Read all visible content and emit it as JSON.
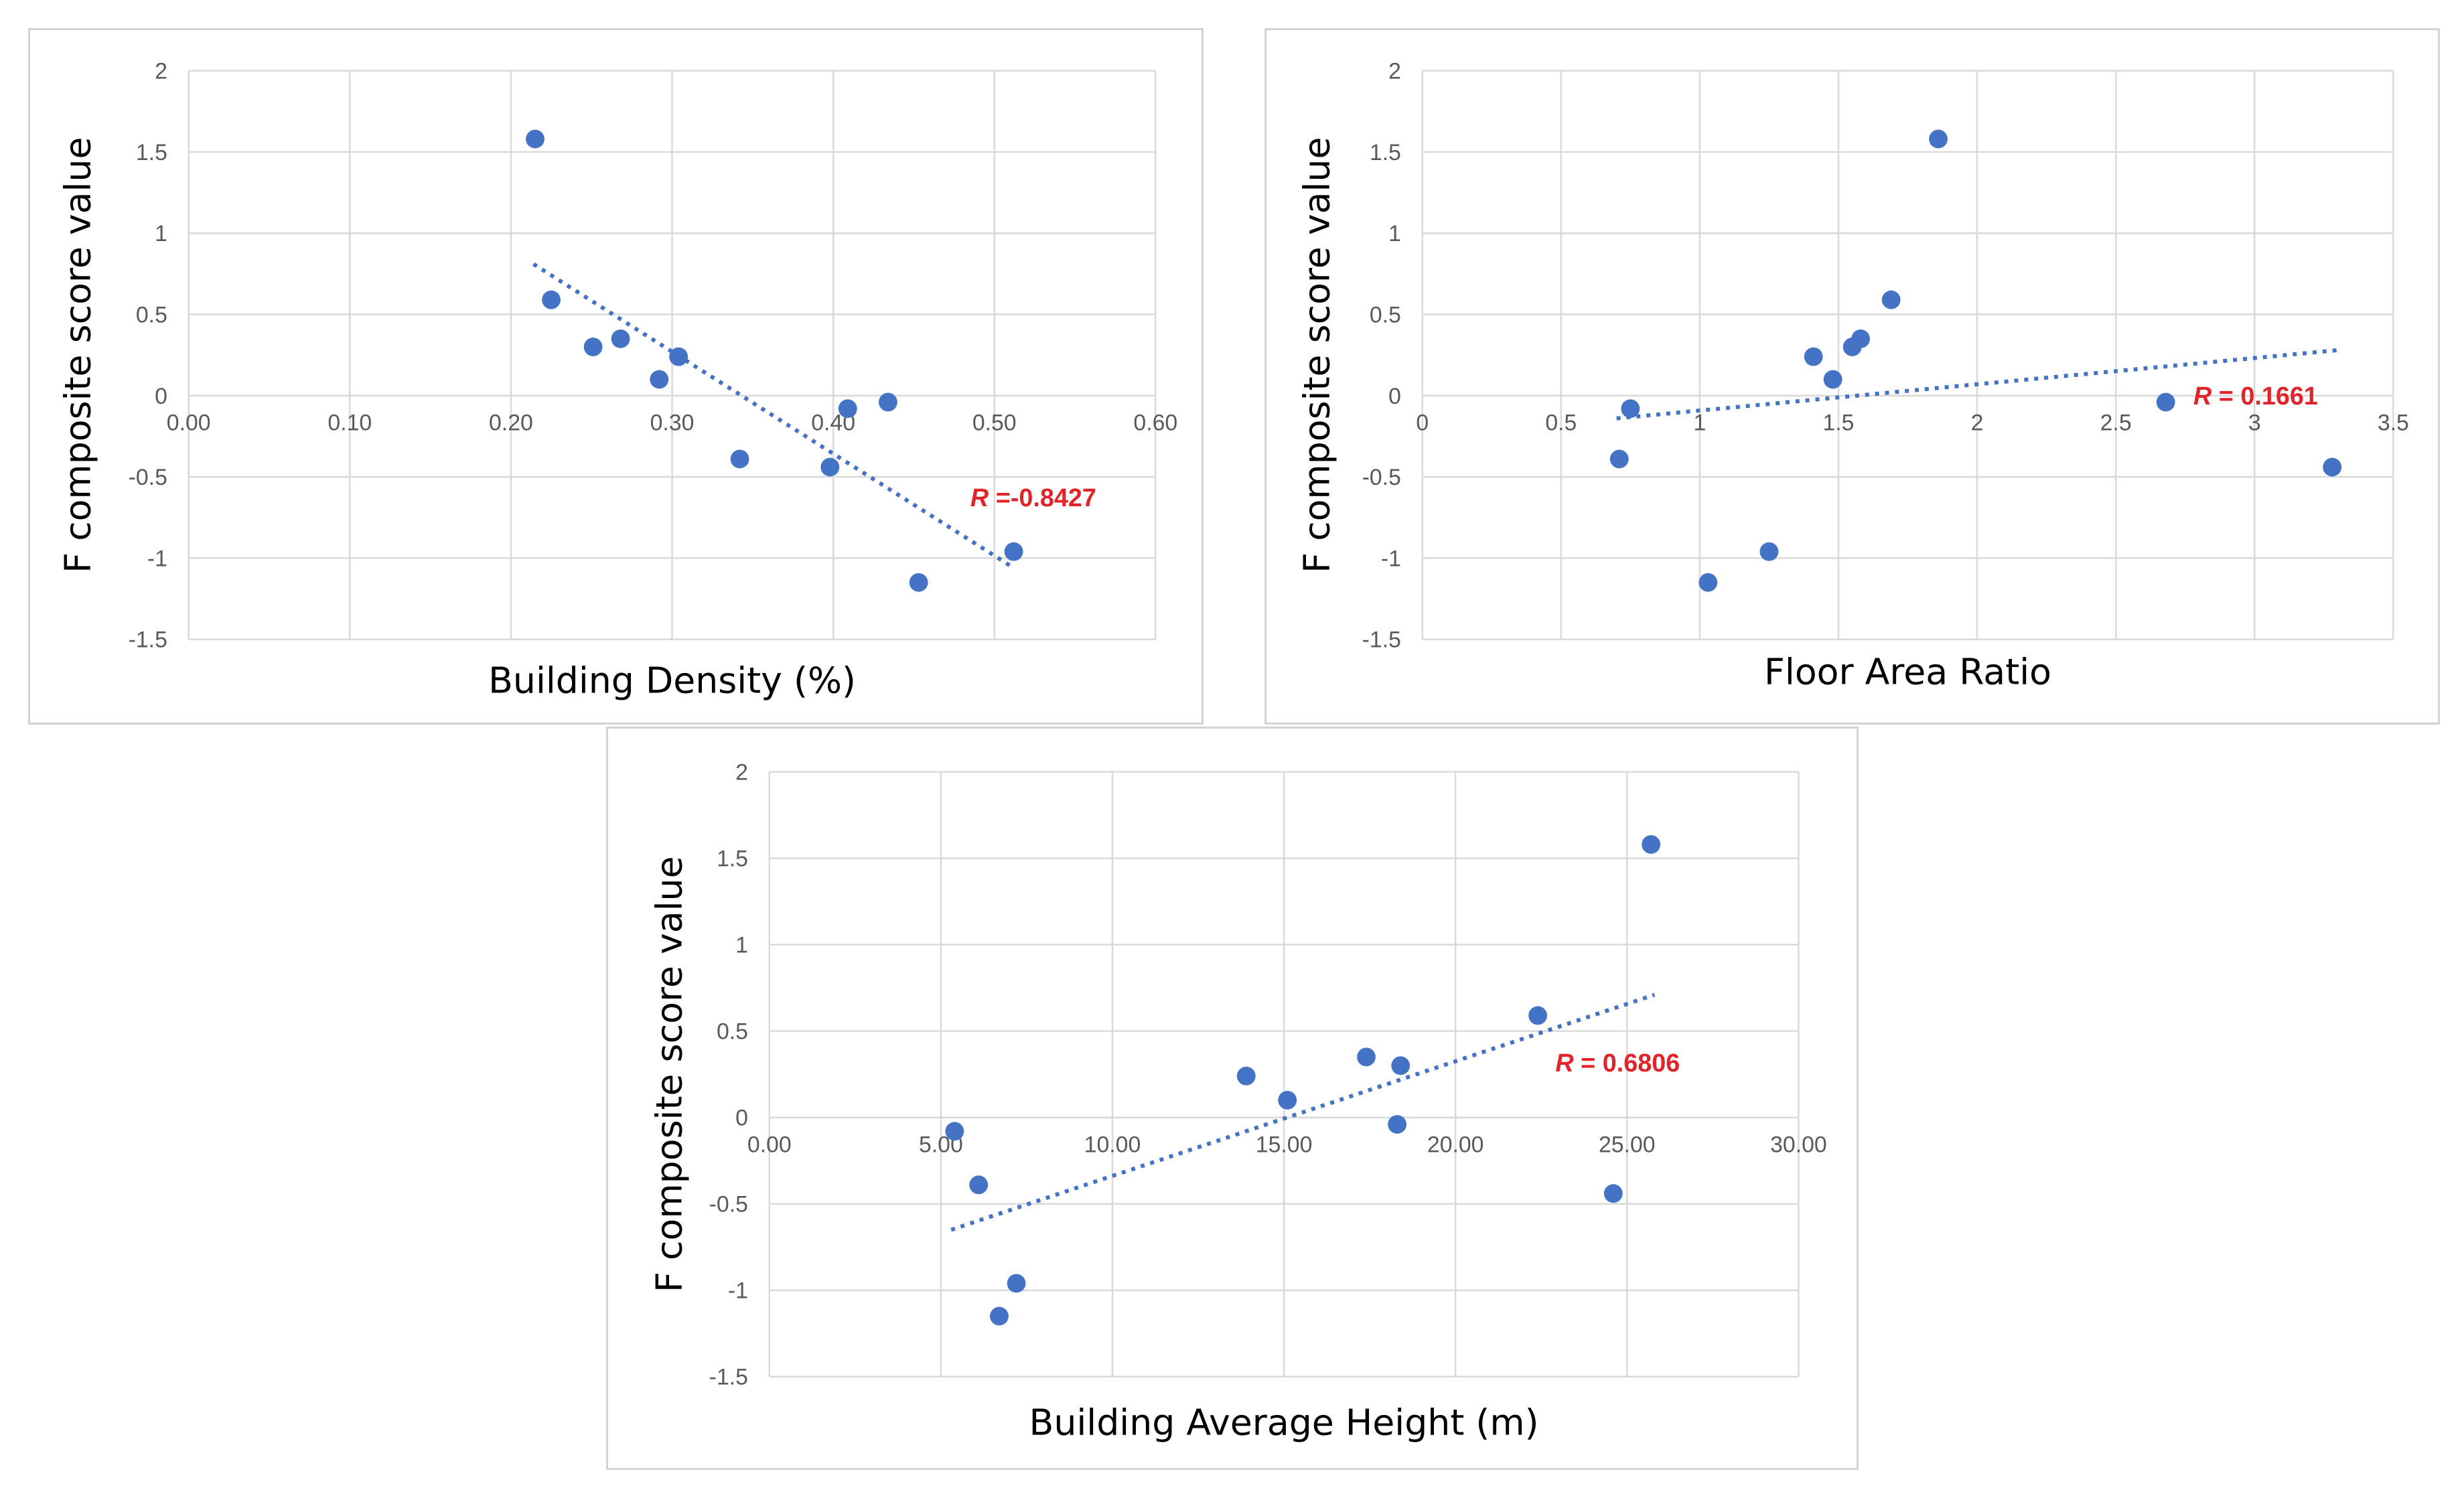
{
  "chart_data": [
    {
      "type": "scatter",
      "title": "",
      "xlabel": "Building Density (%)",
      "ylabel": "F composite score value",
      "xlim": [
        0,
        0.6
      ],
      "ylim": [
        -1.5,
        2
      ],
      "xticks": [
        "0.00",
        "0.10",
        "0.20",
        "0.30",
        "0.40",
        "0.50",
        "0.60"
      ],
      "yticks": [
        "2",
        "1.5",
        "1",
        "0.5",
        "0",
        "-0.5",
        "-1",
        "-1.5"
      ],
      "grid": true,
      "points": [
        {
          "x": 0.215,
          "y": 1.58
        },
        {
          "x": 0.225,
          "y": 0.59
        },
        {
          "x": 0.251,
          "y": 0.3
        },
        {
          "x": 0.268,
          "y": 0.35
        },
        {
          "x": 0.292,
          "y": 0.1
        },
        {
          "x": 0.304,
          "y": 0.24
        },
        {
          "x": 0.342,
          "y": -0.39
        },
        {
          "x": 0.398,
          "y": -0.44
        },
        {
          "x": 0.409,
          "y": -0.08
        },
        {
          "x": 0.434,
          "y": -0.04
        },
        {
          "x": 0.453,
          "y": -1.15
        },
        {
          "x": 0.512,
          "y": -0.96
        }
      ],
      "trendline": {
        "x1": 0.214,
        "y1": 0.81,
        "x2": 0.512,
        "y2": -1.06
      },
      "annotation": {
        "symbol": "R",
        "text": " =-0.8427"
      }
    },
    {
      "type": "scatter",
      "title": "",
      "xlabel": "Floor Area Ratio",
      "ylabel": "F composite score value",
      "xlim": [
        0,
        3.5
      ],
      "ylim": [
        -1.5,
        2
      ],
      "xticks": [
        "0",
        "0.5",
        "1",
        "1.5",
        "2",
        "2.5",
        "3",
        "3.5"
      ],
      "yticks": [
        "2",
        "1.5",
        "1",
        "0.5",
        "0",
        "-0.5",
        "-1",
        "-1.5"
      ],
      "grid": true,
      "points": [
        {
          "x": 0.71,
          "y": -0.39
        },
        {
          "x": 0.75,
          "y": -0.08
        },
        {
          "x": 1.03,
          "y": -1.15
        },
        {
          "x": 1.25,
          "y": -0.96
        },
        {
          "x": 1.41,
          "y": 0.24
        },
        {
          "x": 1.48,
          "y": 0.1
        },
        {
          "x": 1.55,
          "y": 0.3
        },
        {
          "x": 1.58,
          "y": 0.35
        },
        {
          "x": 1.69,
          "y": 0.59
        },
        {
          "x": 1.86,
          "y": 1.58
        },
        {
          "x": 2.68,
          "y": -0.04
        },
        {
          "x": 3.28,
          "y": -0.44
        }
      ],
      "trendline": {
        "x1": 0.7,
        "y1": -0.14,
        "x2": 3.3,
        "y2": 0.28
      },
      "annotation": {
        "symbol": "R",
        "text": " = 0.1661"
      }
    },
    {
      "type": "scatter",
      "title": "",
      "xlabel": "Building Average Height (m)",
      "ylabel": "F composite score value",
      "xlim": [
        0,
        30
      ],
      "ylim": [
        -1.5,
        2
      ],
      "xticks": [
        "0.00",
        "5.00",
        "10.00",
        "15.00",
        "20.00",
        "25.00",
        "30.00"
      ],
      "yticks": [
        "2",
        "1.5",
        "1",
        "0.5",
        "0",
        "-0.5",
        "-1",
        "-1.5"
      ],
      "grid": true,
      "points": [
        {
          "x": 5.4,
          "y": -0.08
        },
        {
          "x": 6.1,
          "y": -0.39
        },
        {
          "x": 6.7,
          "y": -1.15
        },
        {
          "x": 7.2,
          "y": -0.96
        },
        {
          "x": 13.9,
          "y": 0.24
        },
        {
          "x": 15.1,
          "y": 0.1
        },
        {
          "x": 17.4,
          "y": 0.35
        },
        {
          "x": 18.3,
          "y": -0.04
        },
        {
          "x": 18.4,
          "y": 0.3
        },
        {
          "x": 22.4,
          "y": 0.59
        },
        {
          "x": 24.6,
          "y": -0.44
        },
        {
          "x": 25.7,
          "y": 1.58
        }
      ],
      "trendline": {
        "x1": 5.3,
        "y1": -0.65,
        "x2": 25.8,
        "y2": 0.71
      },
      "annotation": {
        "symbol": "R",
        "text": " = 0.6806"
      }
    }
  ]
}
